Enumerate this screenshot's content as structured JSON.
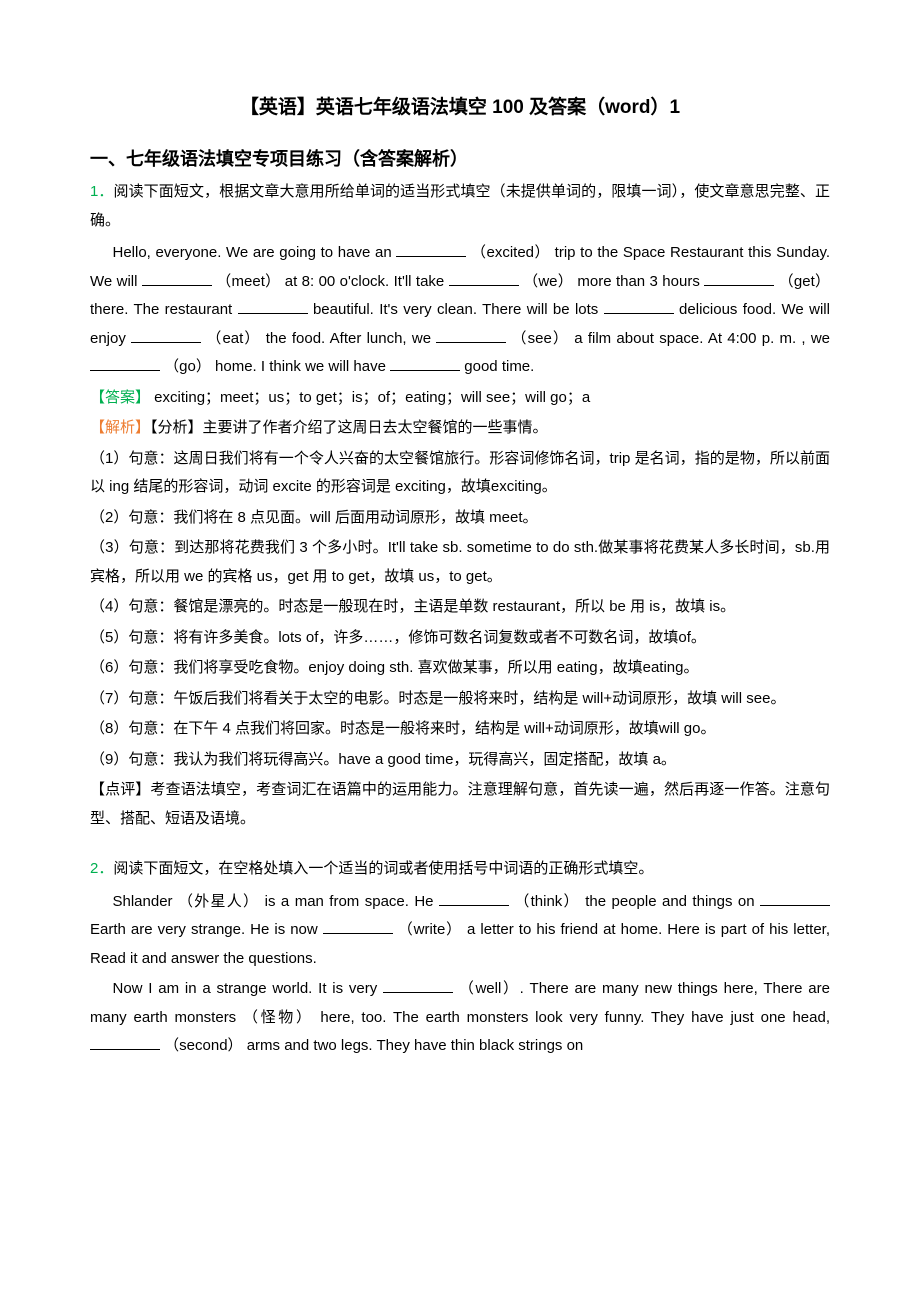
{
  "title": "【英语】英语七年级语法填空 100 及答案（word）1",
  "section_heading": "一、七年级语法填空专项目练习（含答案解析）",
  "q1": {
    "num": "1．",
    "intro": "阅读下面短文，根据文章大意用所给单词的适当形式填空（未提供单词的，限填一词），使文章意思完整、正确。",
    "p1a": "Hello, everyone. We are going to have an ",
    "p1b": " （excited） trip to the Space Restaurant this Sunday. We will ",
    "p1c": " （meet） at 8: 00 o'clock. It'll take ",
    "p1d": " （we） more than 3 hours ",
    "p1e": " （get） there. The restaurant ",
    "p1f": " beautiful. It's very clean. There will be lots ",
    "p1g": " delicious food. We will enjoy ",
    "p1h": " （eat） the food. After lunch, we ",
    "p1i": " （see） a film about space. At 4:00 p. m. , we ",
    "p1j": " （go） home. I think we will have ",
    "p1k": " good time.",
    "answer_label": "【答案】",
    "answer_text": " exciting；meet；us；to get；is；of；eating；will see；will go；a",
    "analysis_label": "【解析】",
    "analysis_intro": "【分析】主要讲了作者介绍了这周日去太空餐馆的一些事情。",
    "items": [
      "（1）句意：这周日我们将有一个令人兴奋的太空餐馆旅行。形容词修饰名词，trip 是名词，指的是物，所以前面以 ing 结尾的形容词，动词 excite 的形容词是 exciting，故填exciting。",
      "（2）句意：我们将在 8 点见面。will 后面用动词原形，故填 meet。",
      "（3）句意：到达那将花费我们 3 个多小时。It'll take sb. sometime to do sth.做某事将花费某人多长时间，sb.用宾格，所以用 we 的宾格 us，get 用 to get，故填 us，to get。",
      "（4）句意：餐馆是漂亮的。时态是一般现在时，主语是单数 restaurant，所以 be 用 is，故填 is。",
      "（5）句意：将有许多美食。lots of，许多……，修饰可数名词复数或者不可数名词，故填of。",
      "（6）句意：我们将享受吃食物。enjoy doing sth. 喜欢做某事，所以用 eating，故填eating。",
      "（7）句意：午饭后我们将看关于太空的电影。时态是一般将来时，结构是 will+动词原形，故填 will see。",
      "（8）句意：在下午 4 点我们将回家。时态是一般将来时，结构是 will+动词原形，故填will go。",
      "（9）句意：我认为我们将玩得高兴。have a good time，玩得高兴，固定搭配，故填 a。"
    ],
    "comment": "【点评】考查语法填空，考查词汇在语篇中的运用能力。注意理解句意，首先读一遍，然后再逐一作答。注意句型、搭配、短语及语境。"
  },
  "q2": {
    "num": "2．",
    "intro": "阅读下面短文，在空格处填入一个适当的词或者使用括号中词语的正确形式填空。",
    "p1a": "Shlander （外星人） is a man from space. He ",
    "p1b": " （think） the people and things on ",
    "p1c": " Earth are very strange. He is now ",
    "p1d": " （write） a letter to his friend at home. Here is part of his letter, Read it and answer the questions.",
    "p2a": "Now I am in a strange world. It is very ",
    "p2b": " （well）. There are many new things here, There are many earth monsters （怪物） here, too. The earth monsters look very funny. They have just one head, ",
    "p2c": " （second） arms and two legs. They have thin black strings on"
  },
  "blank_widths": {
    "w1": 70,
    "w2": 70,
    "w3": 70,
    "w4": 70,
    "w5": 70,
    "w6": 70,
    "w7": 70,
    "w8": 70,
    "w9": 70,
    "w10": 70,
    "q2w1": 70,
    "q2w2": 70,
    "q2w3": 70,
    "q2w4": 70,
    "q2w5": 70
  },
  "colors": {
    "green": "#00b050",
    "orange": "#ed7d31",
    "text": "#000000",
    "bg": "#ffffff"
  }
}
